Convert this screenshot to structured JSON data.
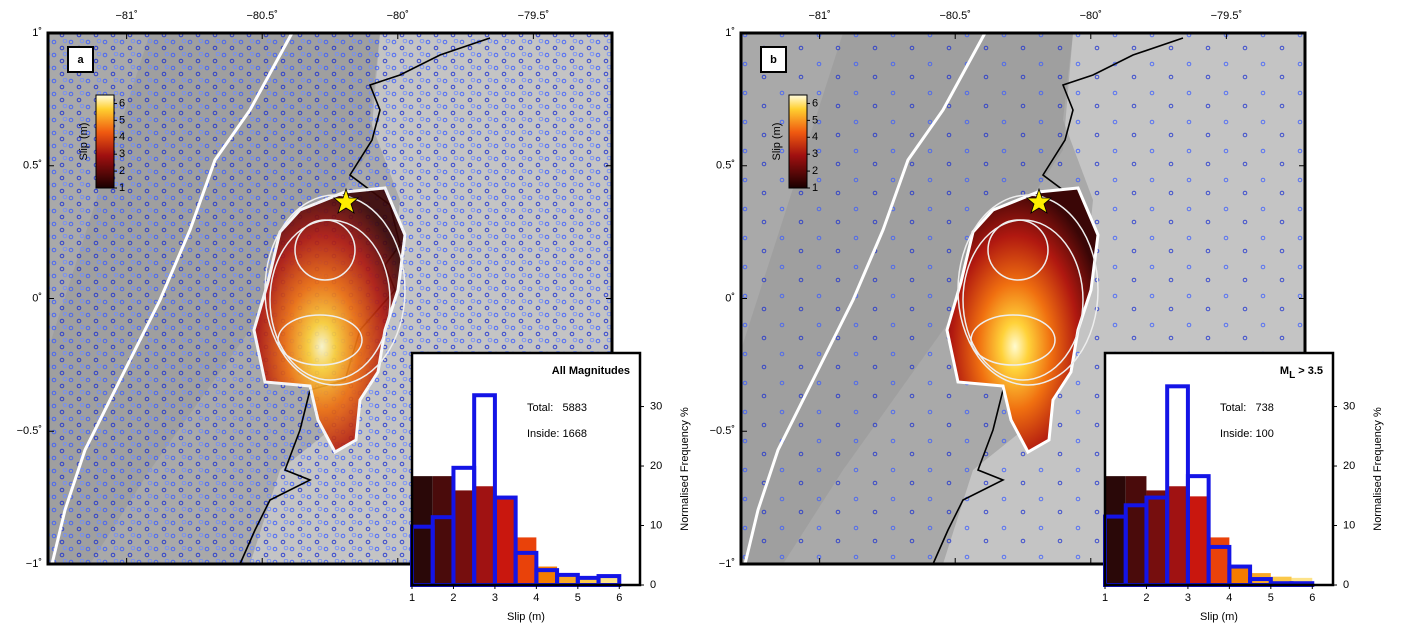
{
  "chart_data": [
    {
      "type": "map",
      "label": "a",
      "xlim": [
        -81.29,
        -79.21
      ],
      "ylim": [
        -1,
        1
      ],
      "xticks": [
        {
          "value": -81,
          "label": "−81˚"
        },
        {
          "value": -80.5,
          "label": "−80.5˚"
        },
        {
          "value": -80,
          "label": "−80˚"
        },
        {
          "value": -79.5,
          "label": "−79.5˚"
        }
      ],
      "yticks": [
        {
          "value": 1,
          "label": "1˚"
        },
        {
          "value": 0.5,
          "label": "0.5˚"
        },
        {
          "value": 0,
          "label": "0˚"
        },
        {
          "value": -0.5,
          "label": "−0.5˚"
        },
        {
          "value": -1,
          "label": "−1˚"
        }
      ],
      "colorbar": {
        "label": "Slip (m)",
        "lim": [
          1,
          6.5
        ],
        "ticks": [
          1,
          2,
          3,
          4,
          5,
          6
        ]
      }
    },
    {
      "type": "histogram",
      "title": "All Magnitudes",
      "annotations": [
        "Total:   5883",
        "Inside: 1668"
      ],
      "xlabel": "Slip (m)",
      "ylabel": "Normalised Frequency %",
      "bins": [
        1,
        1.5,
        2,
        2.5,
        3,
        3.5,
        4,
        4.5,
        5,
        5.5,
        6,
        6.5
      ],
      "xlim": [
        1,
        6.5
      ],
      "ylim": [
        0,
        39
      ],
      "xticks": [
        1,
        2,
        3,
        4,
        5,
        6
      ],
      "yticks": [
        0,
        10,
        20,
        30
      ],
      "series": [
        {
          "color": [
            "#2a0808",
            "#4a0b0b",
            "#760e0e",
            "#a01212",
            "#c9170e",
            "#e9420a",
            "#f57c00",
            "#f9a825",
            "#fbc84a",
            "#fde38a",
            "#fff3c0"
          ],
          "values": [
            18.3,
            18.3,
            15.9,
            16.6,
            14.9,
            8.0,
            3.1,
            2.0,
            1.4,
            1.2,
            0
          ]
        },
        {
          "color": "#1414e6",
          "values": [
            9.8,
            11.4,
            19.7,
            31.9,
            14.7,
            5.4,
            2.5,
            1.7,
            1.2,
            1.5,
            0
          ]
        }
      ]
    },
    {
      "type": "map",
      "label": "b",
      "xlim": [
        -81.29,
        -79.21
      ],
      "ylim": [
        -1,
        1
      ],
      "xticks": [
        {
          "value": -81,
          "label": "−81˚"
        },
        {
          "value": -80.5,
          "label": "−80.5˚"
        },
        {
          "value": -80,
          "label": "−80˚"
        },
        {
          "value": -79.5,
          "label": "−79.5˚"
        }
      ],
      "yticks": [
        {
          "value": 1,
          "label": "1˚"
        },
        {
          "value": 0.5,
          "label": "0.5˚"
        },
        {
          "value": 0,
          "label": "0˚"
        },
        {
          "value": -0.5,
          "label": "−0.5˚"
        },
        {
          "value": -1,
          "label": "−1˚"
        }
      ],
      "colorbar": {
        "label": "Slip (m)",
        "lim": [
          1,
          6.5
        ],
        "ticks": [
          1,
          2,
          3,
          4,
          5,
          6
        ]
      }
    },
    {
      "type": "histogram",
      "title": "M",
      "title_sub": "L",
      "title_rest": " > 3.5",
      "annotations": [
        "Total:   738",
        "Inside: 100"
      ],
      "xlabel": "Slip (m)",
      "ylabel": "Normalised Frequency %",
      "bins": [
        1,
        1.5,
        2,
        2.5,
        3,
        3.5,
        4,
        4.5,
        5,
        5.5,
        6,
        6.5
      ],
      "xlim": [
        1,
        6.5
      ],
      "ylim": [
        0,
        39
      ],
      "xticks": [
        1,
        2,
        3,
        4,
        5,
        6
      ],
      "yticks": [
        0,
        10,
        20,
        30
      ],
      "series": [
        {
          "color": [
            "#2a0808",
            "#4a0b0b",
            "#760e0e",
            "#a01212",
            "#c9170e",
            "#e9420a",
            "#f57c00",
            "#f9a825",
            "#fbc84a",
            "#fde38a",
            "#fff3c0"
          ],
          "values": [
            18.3,
            18.3,
            15.9,
            16.6,
            14.9,
            8.0,
            3.1,
            2.0,
            1.4,
            1.2,
            0
          ]
        },
        {
          "color": "#1414e6",
          "values": [
            11.5,
            13.4,
            14.7,
            33.4,
            18.3,
            6.4,
            3.1,
            1.0,
            0.3,
            0.3,
            0
          ]
        }
      ]
    }
  ]
}
